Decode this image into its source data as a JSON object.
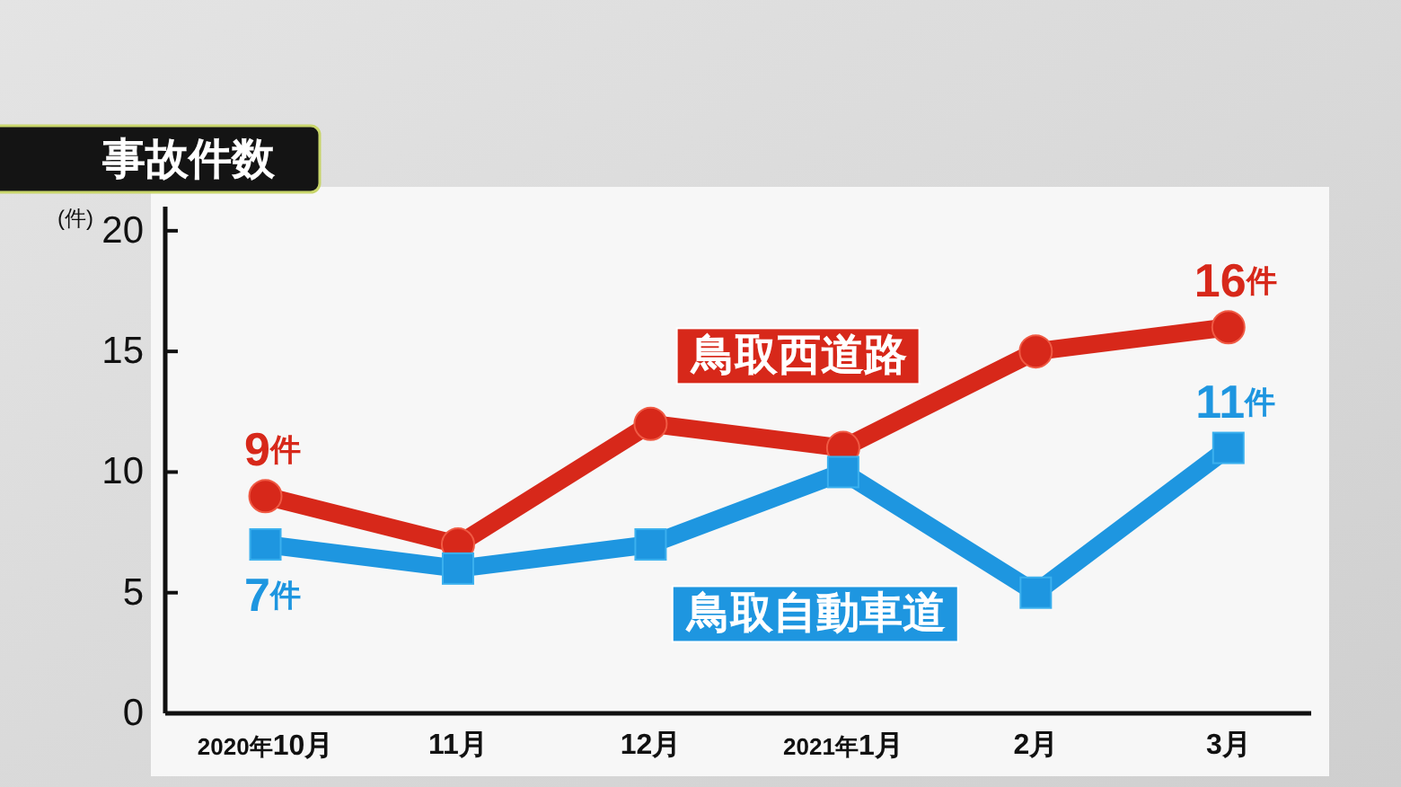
{
  "chart_data": {
    "type": "line",
    "title": "事故件数",
    "ylabel": "(件)",
    "categories": [
      "2020年10月",
      "11月",
      "12月",
      "2021年1月",
      "2月",
      "3月"
    ],
    "series": [
      {
        "name": "鳥取西道路",
        "color": "#d7281a",
        "marker": "circle",
        "values": [
          9,
          7,
          12,
          11,
          15,
          16
        ],
        "value_labels": [
          "9件",
          null,
          null,
          null,
          null,
          "16件"
        ]
      },
      {
        "name": "鳥取自動車道",
        "color": "#1e96e0",
        "marker": "square",
        "values": [
          7,
          6,
          7,
          10,
          5,
          11
        ],
        "value_labels": [
          "7件",
          null,
          null,
          null,
          null,
          "11件"
        ]
      }
    ],
    "ylim": [
      0,
      21
    ],
    "yticks": [
      0,
      5,
      10,
      15,
      20
    ]
  }
}
